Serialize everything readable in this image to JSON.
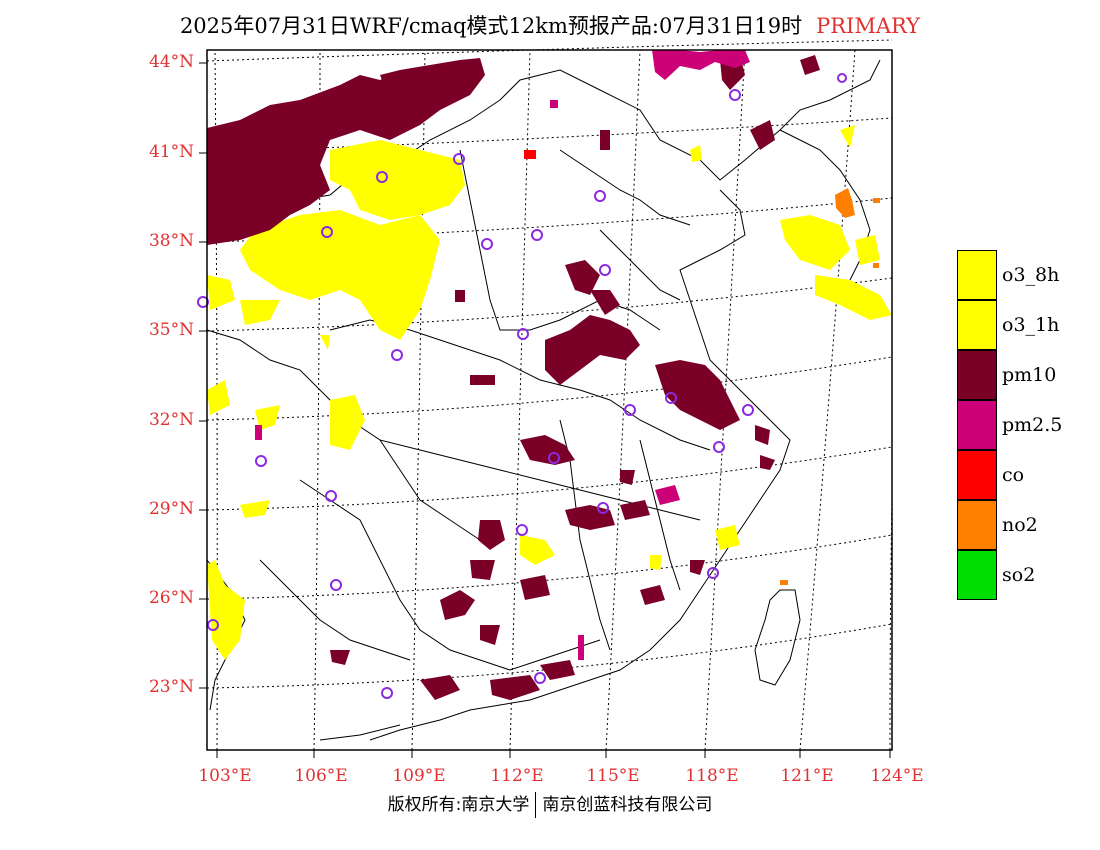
{
  "header": {
    "title": "2025年07月31日WRF/cmaq模式12km预报产品:07月31日19时",
    "tag": "PRIMARY"
  },
  "axes": {
    "lat_labels": [
      "44°N",
      "41°N",
      "38°N",
      "35°N",
      "32°N",
      "29°N",
      "26°N",
      "23°N"
    ],
    "lon_labels": [
      "103°E",
      "106°E",
      "109°E",
      "112°E",
      "115°E",
      "118°E",
      "121°E",
      "124°E"
    ]
  },
  "legend": [
    {
      "label": "o3_8h",
      "color": "#ffff00"
    },
    {
      "label": "o3_1h",
      "color": "#ffff00"
    },
    {
      "label": "pm10",
      "color": "#7a0028"
    },
    {
      "label": "pm2.5",
      "color": "#cc0077"
    },
    {
      "label": "co",
      "color": "#ff0000"
    },
    {
      "label": "no2",
      "color": "#ff7f00"
    },
    {
      "label": "so2",
      "color": "#00dd00"
    }
  ],
  "footer": {
    "left": "版权所有:南京大学",
    "right": "南京创蓝科技有限公司"
  }
}
